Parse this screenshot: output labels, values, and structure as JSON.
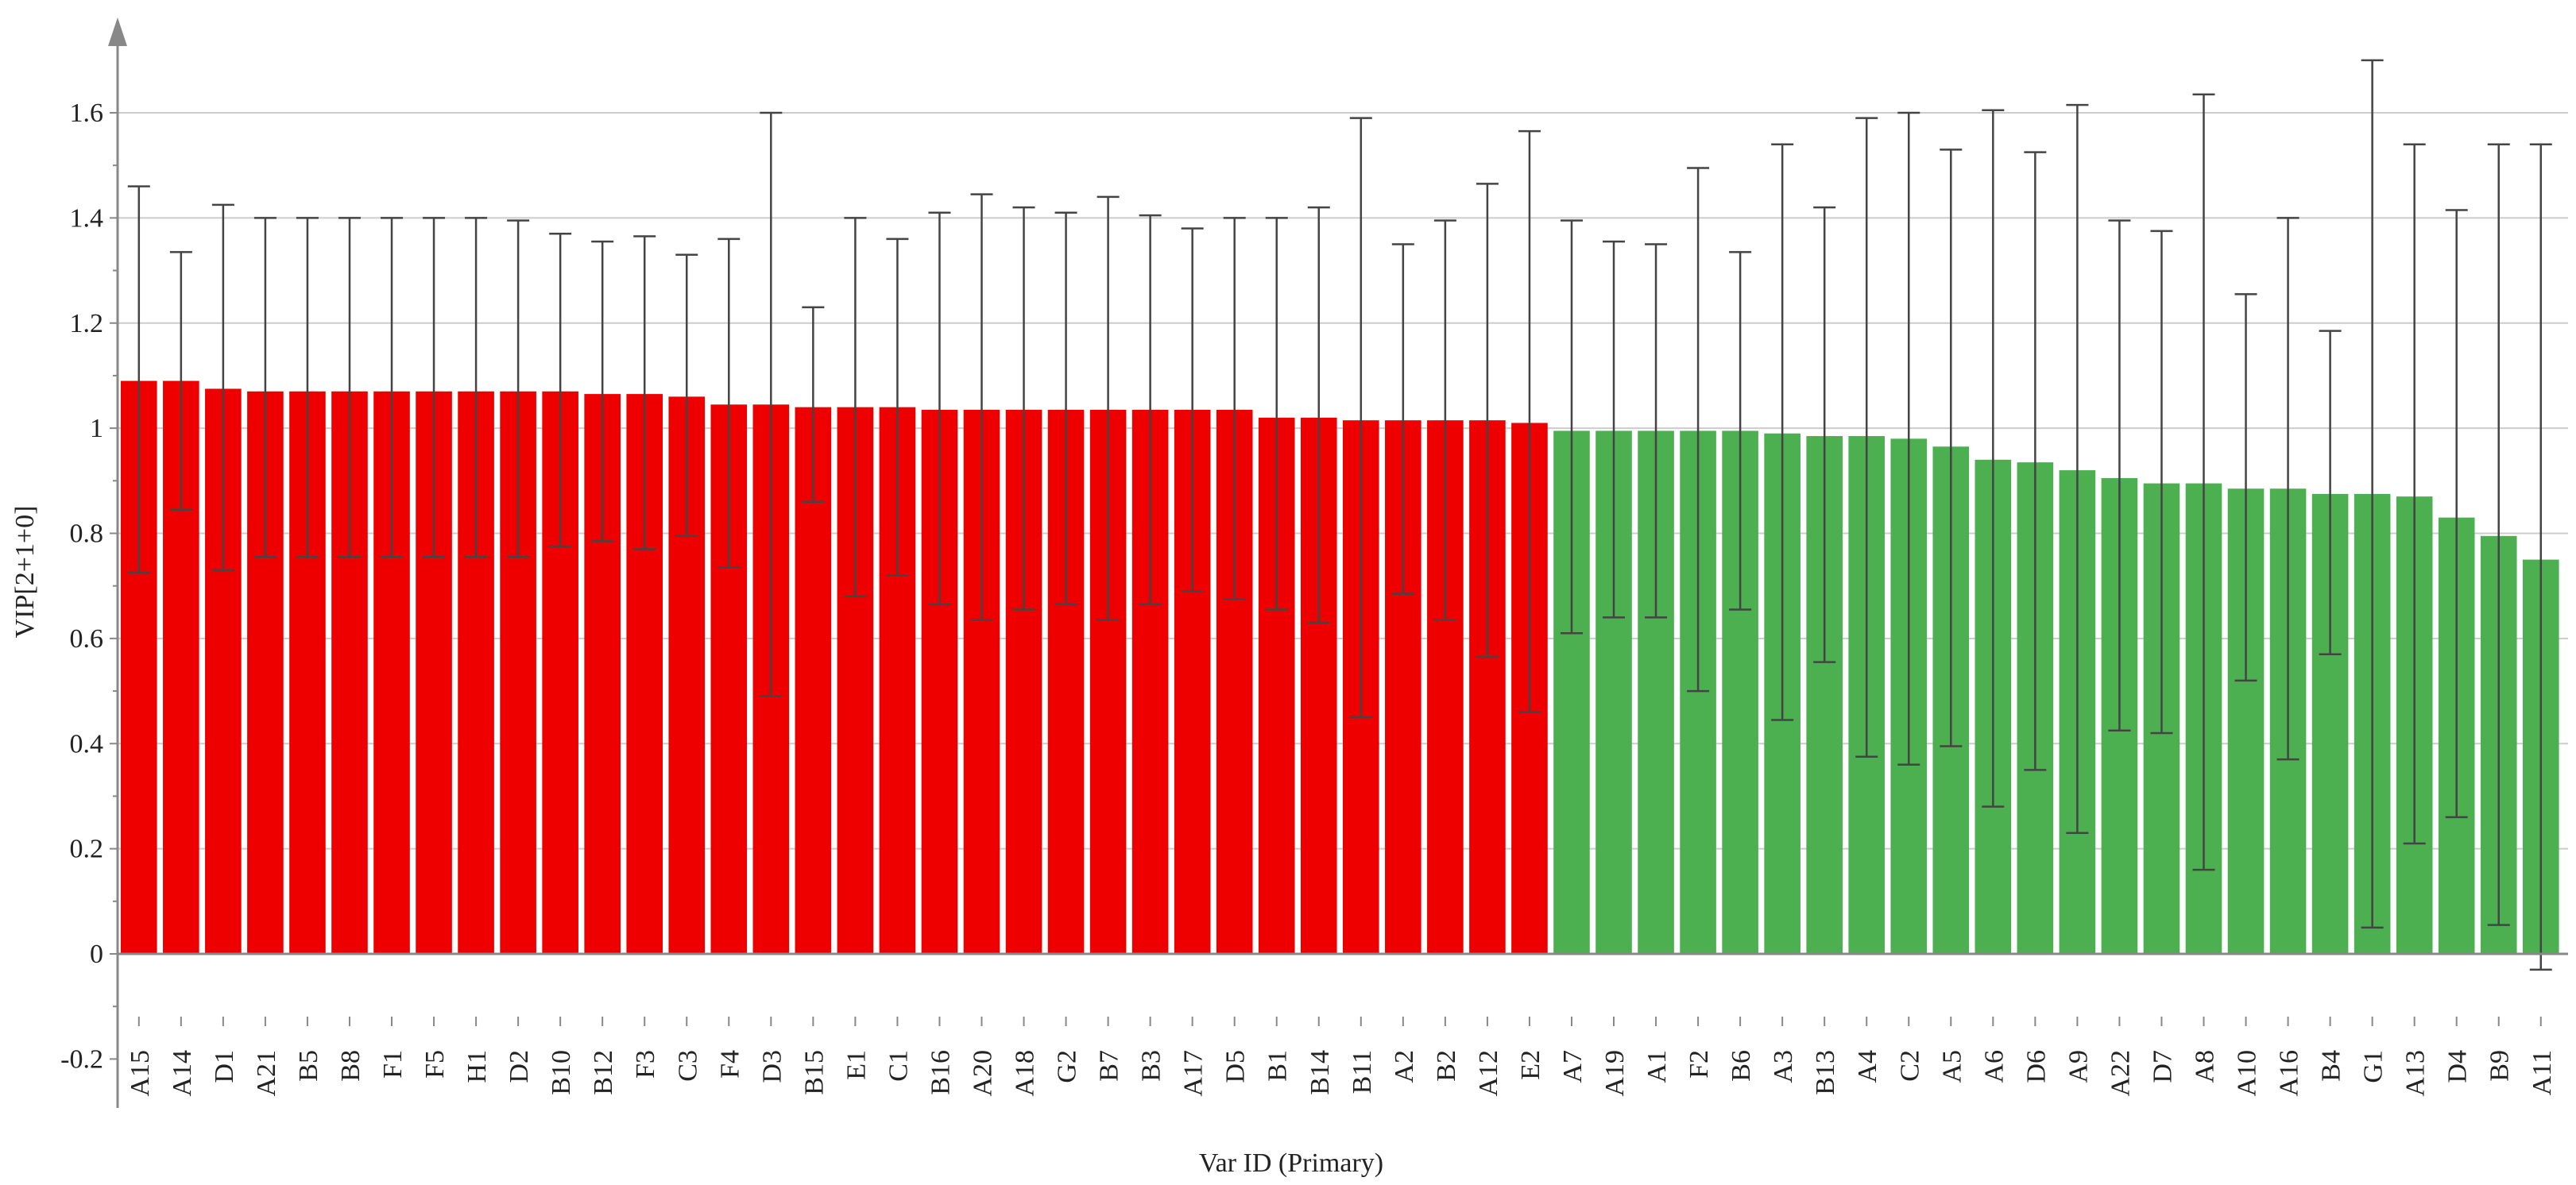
{
  "chart_data": {
    "type": "bar",
    "xlabel": "Var ID (Primary)",
    "ylabel": "VIP[2+1+0]",
    "ylim": [
      -0.2,
      1.75
    ],
    "yticks": [
      -0.2,
      0,
      0.2,
      0.4,
      0.6,
      0.8,
      1,
      1.2,
      1.4,
      1.6
    ],
    "ytick_labels": [
      "-0.2",
      "0",
      "0.2",
      "0.4",
      "0.6",
      "0.8",
      "1",
      "1.2",
      "1.4",
      "1.6"
    ],
    "grid": true,
    "legend": false,
    "colors": {
      "above_1": "#ee0000",
      "below_1": "#4caf50",
      "error_bar": "#444444",
      "grid": "#cccccc",
      "axis": "#888888"
    },
    "categories": [
      "A15",
      "A14",
      "D1",
      "A21",
      "B5",
      "B8",
      "F1",
      "F5",
      "H1",
      "D2",
      "B10",
      "B12",
      "F3",
      "C3",
      "F4",
      "D3",
      "B15",
      "E1",
      "C1",
      "B16",
      "A20",
      "A18",
      "G2",
      "B7",
      "B3",
      "A17",
      "D5",
      "B1",
      "B14",
      "B11",
      "A2",
      "B2",
      "A12",
      "E2",
      "A7",
      "A19",
      "A1",
      "F2",
      "B6",
      "A3",
      "B13",
      "A4",
      "C2",
      "A5",
      "A6",
      "D6",
      "A9",
      "A22",
      "D7",
      "A8",
      "A10",
      "A16",
      "B4",
      "G1",
      "A13",
      "D4",
      "B9",
      "A11"
    ],
    "values": [
      1.09,
      1.09,
      1.075,
      1.07,
      1.07,
      1.07,
      1.07,
      1.07,
      1.07,
      1.07,
      1.07,
      1.065,
      1.065,
      1.06,
      1.045,
      1.045,
      1.04,
      1.04,
      1.04,
      1.035,
      1.035,
      1.035,
      1.035,
      1.035,
      1.035,
      1.035,
      1.035,
      1.02,
      1.02,
      1.015,
      1.015,
      1.015,
      1.015,
      1.01,
      0.995,
      0.995,
      0.995,
      0.995,
      0.995,
      0.99,
      0.985,
      0.985,
      0.98,
      0.965,
      0.94,
      0.935,
      0.92,
      0.905,
      0.895,
      0.895,
      0.885,
      0.885,
      0.875,
      0.875,
      0.87,
      0.83,
      0.795,
      0.75
    ],
    "error_upper": [
      1.46,
      1.335,
      1.425,
      1.4,
      1.4,
      1.4,
      1.4,
      1.4,
      1.4,
      1.395,
      1.37,
      1.355,
      1.365,
      1.33,
      1.36,
      1.6,
      1.23,
      1.4,
      1.36,
      1.41,
      1.445,
      1.42,
      1.41,
      1.44,
      1.405,
      1.38,
      1.4,
      1.4,
      1.42,
      1.59,
      1.35,
      1.395,
      1.465,
      1.565,
      1.395,
      1.355,
      1.35,
      1.495,
      1.335,
      1.54,
      1.42,
      1.59,
      1.6,
      1.53,
      1.605,
      1.525,
      1.615,
      1.395,
      1.375,
      1.635,
      1.255,
      1.4,
      1.185,
      1.7,
      1.54,
      1.415,
      1.54,
      1.54
    ],
    "error_lower": [
      0.725,
      0.845,
      0.73,
      0.755,
      0.755,
      0.755,
      0.755,
      0.755,
      0.755,
      0.755,
      0.775,
      0.785,
      0.77,
      0.795,
      0.735,
      0.49,
      0.86,
      0.68,
      0.72,
      0.665,
      0.635,
      0.655,
      0.665,
      0.635,
      0.665,
      0.69,
      0.675,
      0.655,
      0.63,
      0.45,
      0.685,
      0.635,
      0.565,
      0.46,
      0.61,
      0.64,
      0.64,
      0.5,
      0.655,
      0.445,
      0.555,
      0.375,
      0.36,
      0.395,
      0.28,
      0.35,
      0.23,
      0.425,
      0.42,
      0.16,
      0.52,
      0.37,
      0.57,
      0.05,
      0.21,
      0.26,
      0.055,
      -0.03
    ]
  }
}
